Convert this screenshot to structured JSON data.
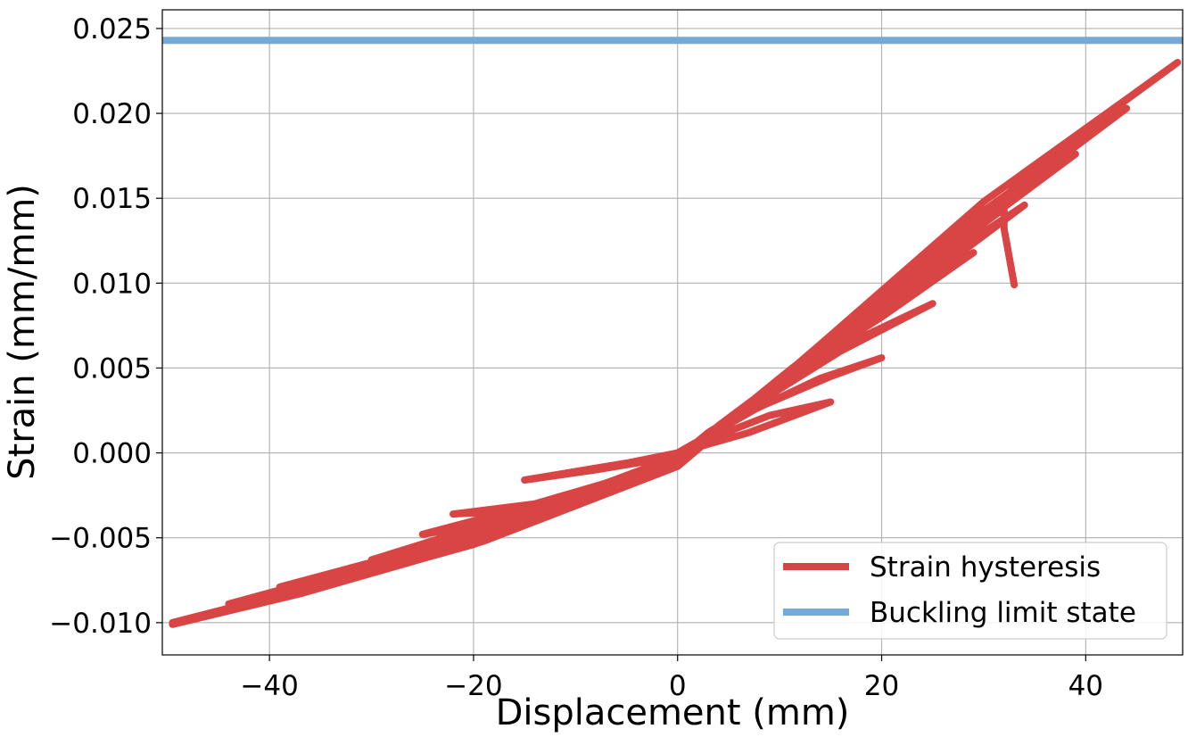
{
  "chart_data": {
    "type": "line",
    "title": "",
    "xlabel": "Displacement (mm)",
    "ylabel": "Strain (mm/mm)",
    "xlim": [
      -50.5,
      49.5
    ],
    "ylim": [
      -0.0119,
      0.0261
    ],
    "grid": true,
    "legend_position": "lower-right",
    "x_ticks": [
      -40,
      -20,
      0,
      20,
      40
    ],
    "x_tick_labels": [
      "−40",
      "−20",
      "0",
      "20",
      "40"
    ],
    "y_ticks": [
      -0.01,
      -0.005,
      0.0,
      0.005,
      0.01,
      0.015,
      0.02,
      0.025
    ],
    "y_tick_labels": [
      "−0.010",
      "−0.005",
      "0.000",
      "0.005",
      "0.010",
      "0.015",
      "0.020",
      "0.025"
    ],
    "series": [
      {
        "name": "Strain hysteresis",
        "color": "#d94545",
        "kind": "hysteresis",
        "points": [
          [
            0,
            0
          ],
          [
            7,
            0.0012
          ],
          [
            15,
            0.003
          ],
          [
            9,
            0.0022
          ],
          [
            3,
            0.0008
          ],
          [
            0,
            0
          ],
          [
            -5,
            -0.0006
          ],
          [
            -10,
            -0.0011
          ],
          [
            -15,
            -0.0016
          ],
          [
            -8,
            -0.001
          ],
          [
            -3,
            -0.0005
          ],
          [
            0,
            0
          ],
          [
            7,
            0.0024
          ],
          [
            14,
            0.0044
          ],
          [
            20,
            0.0056
          ],
          [
            15,
            0.0045
          ],
          [
            8,
            0.0027
          ],
          [
            3,
            0.001
          ],
          [
            0,
            -0.0002
          ],
          [
            -8,
            -0.002
          ],
          [
            -16,
            -0.0034
          ],
          [
            -22,
            -0.0036
          ],
          [
            -14,
            -0.003
          ],
          [
            -6,
            -0.0016
          ],
          [
            0,
            -0.0003
          ],
          [
            8,
            0.003
          ],
          [
            16,
            0.006
          ],
          [
            25,
            0.0088
          ],
          [
            18,
            0.0068
          ],
          [
            10,
            0.0038
          ],
          [
            3,
            0.0012
          ],
          [
            0,
            -0.0003
          ],
          [
            -10,
            -0.0024
          ],
          [
            -20,
            -0.004
          ],
          [
            -25,
            -0.0048
          ],
          [
            -17,
            -0.004
          ],
          [
            -8,
            -0.0022
          ],
          [
            0,
            -0.0004
          ],
          [
            10,
            0.0042
          ],
          [
            20,
            0.008
          ],
          [
            29,
            0.0118
          ],
          [
            21,
            0.009
          ],
          [
            12,
            0.0052
          ],
          [
            4,
            0.0016
          ],
          [
            0,
            -0.0004
          ],
          [
            -10,
            -0.0026
          ],
          [
            -22,
            -0.0048
          ],
          [
            -30,
            -0.0063
          ],
          [
            -20,
            -0.005
          ],
          [
            -9,
            -0.0026
          ],
          [
            0,
            -0.0005
          ],
          [
            10,
            0.0044
          ],
          [
            22,
            0.0098
          ],
          [
            34,
            0.0146
          ],
          [
            26,
            0.011
          ],
          [
            16,
            0.0066
          ],
          [
            6,
            0.0024
          ],
          [
            0,
            -0.0005
          ],
          [
            -12,
            -0.0032
          ],
          [
            -26,
            -0.0058
          ],
          [
            -39,
            -0.0079
          ],
          [
            -28,
            -0.0064
          ],
          [
            -14,
            -0.0038
          ],
          [
            0,
            -0.0006
          ],
          [
            12,
            0.0052
          ],
          [
            26,
            0.0118
          ],
          [
            39,
            0.0176
          ],
          [
            30,
            0.0137
          ],
          [
            19,
            0.0082
          ],
          [
            7,
            0.0028
          ],
          [
            0,
            -0.0006
          ],
          [
            -14,
            -0.0036
          ],
          [
            -30,
            -0.0066
          ],
          [
            -44,
            -0.0089
          ],
          [
            -33,
            -0.0074
          ],
          [
            -17,
            -0.0046
          ],
          [
            0,
            -0.0007
          ],
          [
            13,
            0.0058
          ],
          [
            28,
            0.0134
          ],
          [
            44,
            0.0203
          ],
          [
            34,
            0.0158
          ],
          [
            21,
            0.0096
          ],
          [
            8,
            0.0034
          ],
          [
            0,
            -0.0007
          ],
          [
            -15,
            -0.004
          ],
          [
            -32,
            -0.0072
          ],
          [
            -49.5,
            -0.0101
          ],
          [
            -37,
            -0.0083
          ],
          [
            -19,
            -0.0052
          ],
          [
            0,
            -0.0008
          ],
          [
            14,
            0.0064
          ],
          [
            30,
            0.0148
          ],
          [
            49,
            0.023
          ],
          [
            39,
            0.0186
          ],
          [
            26,
            0.0121
          ],
          [
            10,
            0.0044
          ],
          [
            0,
            -0.0008
          ],
          [
            -16,
            -0.0043
          ],
          [
            -34,
            -0.0076
          ],
          [
            -49.5,
            -0.01
          ],
          [
            -38,
            -0.0084
          ],
          [
            -20,
            -0.0054
          ],
          [
            0,
            -0.0008
          ],
          [
            15,
            0.0068
          ],
          [
            32,
            0.0144
          ],
          [
            32,
            0.0132
          ],
          [
            33,
            0.0099
          ]
        ]
      },
      {
        "name": "Buckling limit state",
        "color": "#74a9d8",
        "kind": "hline",
        "y": 0.0243
      }
    ]
  }
}
